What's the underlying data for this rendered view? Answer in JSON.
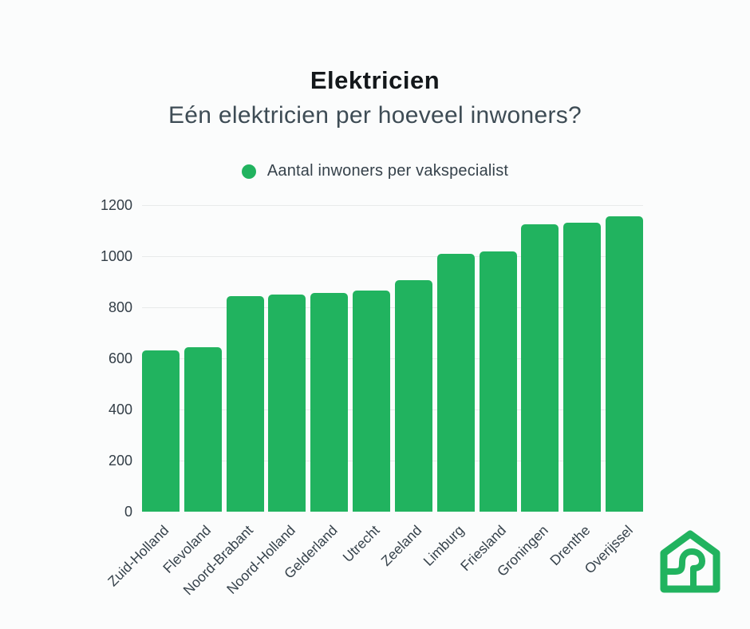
{
  "page": {
    "background": "#fbfcfc"
  },
  "header": {
    "title": "Elektricien",
    "subtitle": "Eén elektricien per hoeveel inwoners?"
  },
  "legend": {
    "label": "Aantal inwoners per vakspecialist",
    "marker": "circle-icon",
    "color": "#21b35f"
  },
  "chart_data": {
    "type": "bar",
    "title": "Elektricien",
    "subtitle": "Eén elektricien per hoeveel inwoners?",
    "legend_entries": [
      "Aantal inwoners per vakspecialist"
    ],
    "legend_position": "top-center",
    "categories": [
      "Zuid-Holland",
      "Flevoland",
      "Noord-Brabant",
      "Noord-Holland",
      "Gelderland",
      "Utrecht",
      "Zeeland",
      "Limburg",
      "Friesland",
      "Groningen",
      "Drenthe",
      "Overijssel"
    ],
    "values": [
      630,
      645,
      845,
      850,
      855,
      865,
      905,
      1010,
      1020,
      1125,
      1130,
      1155
    ],
    "xlabel": "",
    "ylabel": "",
    "ylim": [
      0,
      1200
    ],
    "yticks": [
      0,
      200,
      400,
      600,
      800,
      1000,
      1200
    ],
    "grid": "horizontal",
    "bar_color": "#21b35f",
    "gridline_color": "#e8eaea",
    "axis_text_color": "#333e47"
  },
  "branding": {
    "logo": "house-with-curve-logo",
    "color": "#21b35f"
  }
}
